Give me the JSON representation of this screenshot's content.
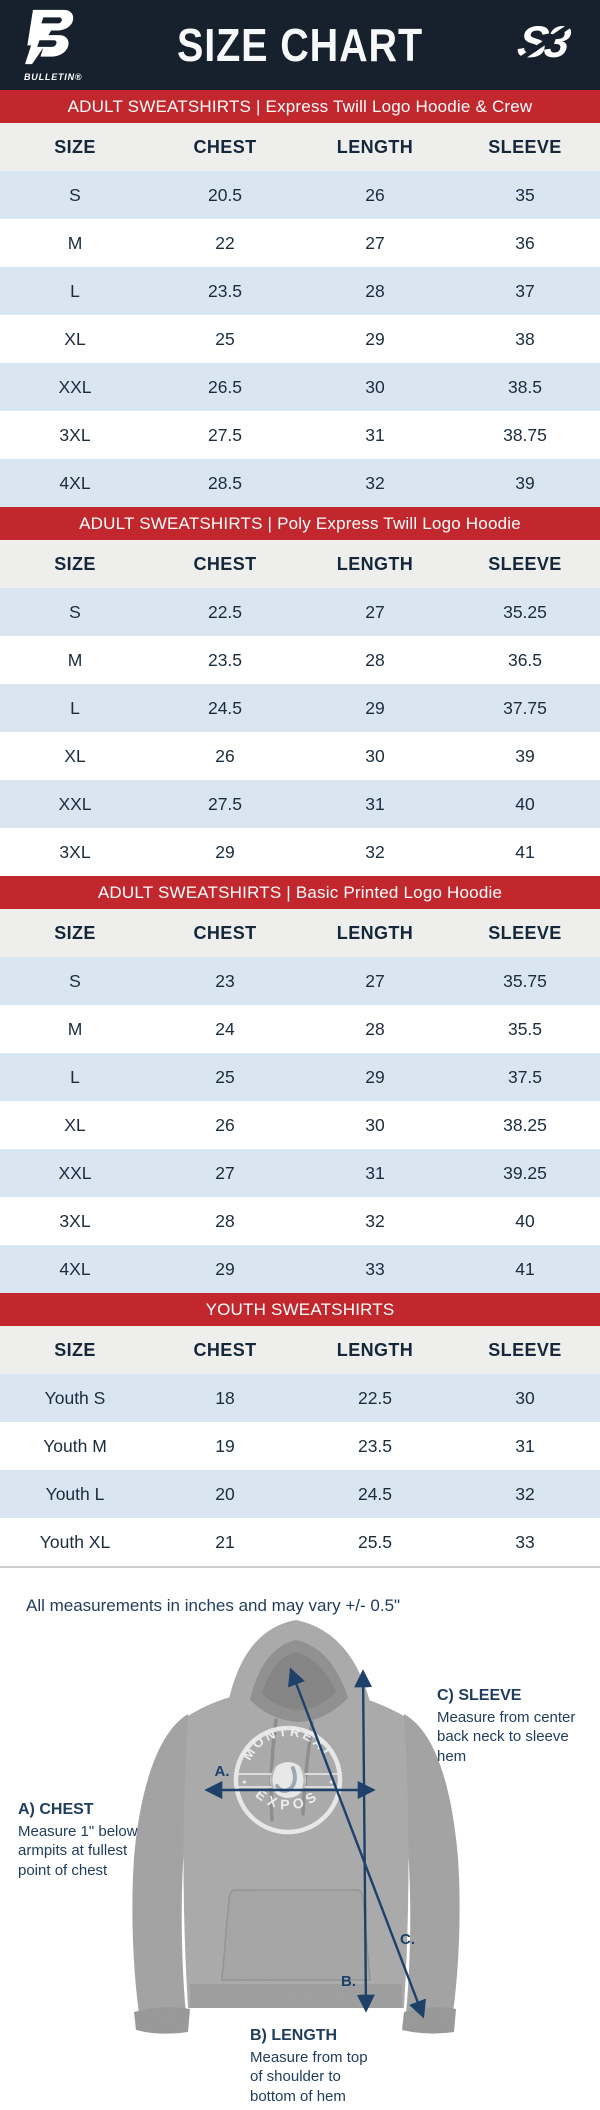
{
  "header": {
    "title": "SIZE CHART",
    "brand_left": "BULLETIN®",
    "brand_right": "S3"
  },
  "columns": [
    "SIZE",
    "CHEST",
    "LENGTH",
    "SLEEVE"
  ],
  "sections": [
    {
      "title": "ADULT SWEATSHIRTS | Express Twill Logo Hoodie & Crew",
      "rows": [
        [
          "S",
          "20.5",
          "26",
          "35"
        ],
        [
          "M",
          "22",
          "27",
          "36"
        ],
        [
          "L",
          "23.5",
          "28",
          "37"
        ],
        [
          "XL",
          "25",
          "29",
          "38"
        ],
        [
          "XXL",
          "26.5",
          "30",
          "38.5"
        ],
        [
          "3XL",
          "27.5",
          "31",
          "38.75"
        ],
        [
          "4XL",
          "28.5",
          "32",
          "39"
        ]
      ]
    },
    {
      "title": "ADULT SWEATSHIRTS | Poly Express Twill Logo Hoodie",
      "rows": [
        [
          "S",
          "22.5",
          "27",
          "35.25"
        ],
        [
          "M",
          "23.5",
          "28",
          "36.5"
        ],
        [
          "L",
          "24.5",
          "29",
          "37.75"
        ],
        [
          "XL",
          "26",
          "30",
          "39"
        ],
        [
          "XXL",
          "27.5",
          "31",
          "40"
        ],
        [
          "3XL",
          "29",
          "32",
          "41"
        ]
      ]
    },
    {
      "title": "ADULT SWEATSHIRTS | Basic Printed Logo Hoodie",
      "rows": [
        [
          "S",
          "23",
          "27",
          "35.75"
        ],
        [
          "M",
          "24",
          "28",
          "35.5"
        ],
        [
          "L",
          "25",
          "29",
          "37.5"
        ],
        [
          "XL",
          "26",
          "30",
          "38.25"
        ],
        [
          "XXL",
          "27",
          "31",
          "39.25"
        ],
        [
          "3XL",
          "28",
          "32",
          "40"
        ],
        [
          "4XL",
          "29",
          "33",
          "41"
        ]
      ]
    },
    {
      "title": "YOUTH SWEATSHIRTS",
      "rows": [
        [
          "Youth S",
          "18",
          "22.5",
          "30"
        ],
        [
          "Youth M",
          "19",
          "23.5",
          "31"
        ],
        [
          "Youth L",
          "20",
          "24.5",
          "32"
        ],
        [
          "Youth XL",
          "21",
          "25.5",
          "33"
        ]
      ]
    }
  ],
  "footer": {
    "note": "All measurements in inches and may vary +/- 0.5\"",
    "measurements": [
      {
        "key": "A.",
        "label": "A) CHEST",
        "description": "Measure 1\" below armpits at fullest point of chest"
      },
      {
        "key": "B.",
        "label": "B) LENGTH",
        "description": "Measure from top of shoulder to bottom of hem"
      },
      {
        "key": "C.",
        "label": "C) SLEEVE",
        "description": "Measure from center back neck to sleeve hem"
      }
    ],
    "hoodie_logo": {
      "top": "MONTREAL",
      "bottom": "EXPOS"
    }
  },
  "colors": {
    "navy": "#16212d",
    "red": "#c1272d",
    "row_blue": "#d9e5f1",
    "row_white": "#ffffff",
    "header_row_bg": "#eeeeec",
    "table_text": "#1b2c3e",
    "diagram_text": "#1e3c5e",
    "arrow": "#1d4168"
  }
}
